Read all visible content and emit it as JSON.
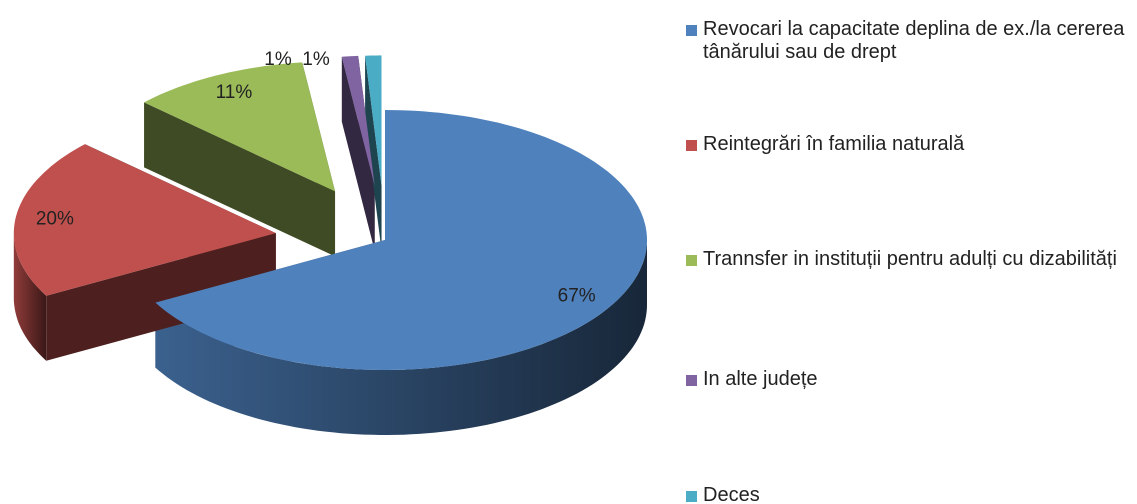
{
  "chart_data": {
    "type": "pie3d",
    "categories": [
      "Revocari la capacitate deplina de ex./la cererea tânărului sau de drept",
      "Reintegrări în familia naturală",
      "Trannsfer in instituții pentru adulți cu dizabilități",
      "In alte județe",
      "Deces"
    ],
    "values": [
      67,
      20,
      11,
      1,
      1
    ],
    "value_labels": [
      "67%",
      "20%",
      "11%",
      "1%",
      "1%"
    ],
    "colors": [
      "#4f81bd",
      "#c0504d",
      "#9bbb59",
      "#8064a2",
      "#4bacc6"
    ],
    "legend": "right"
  }
}
